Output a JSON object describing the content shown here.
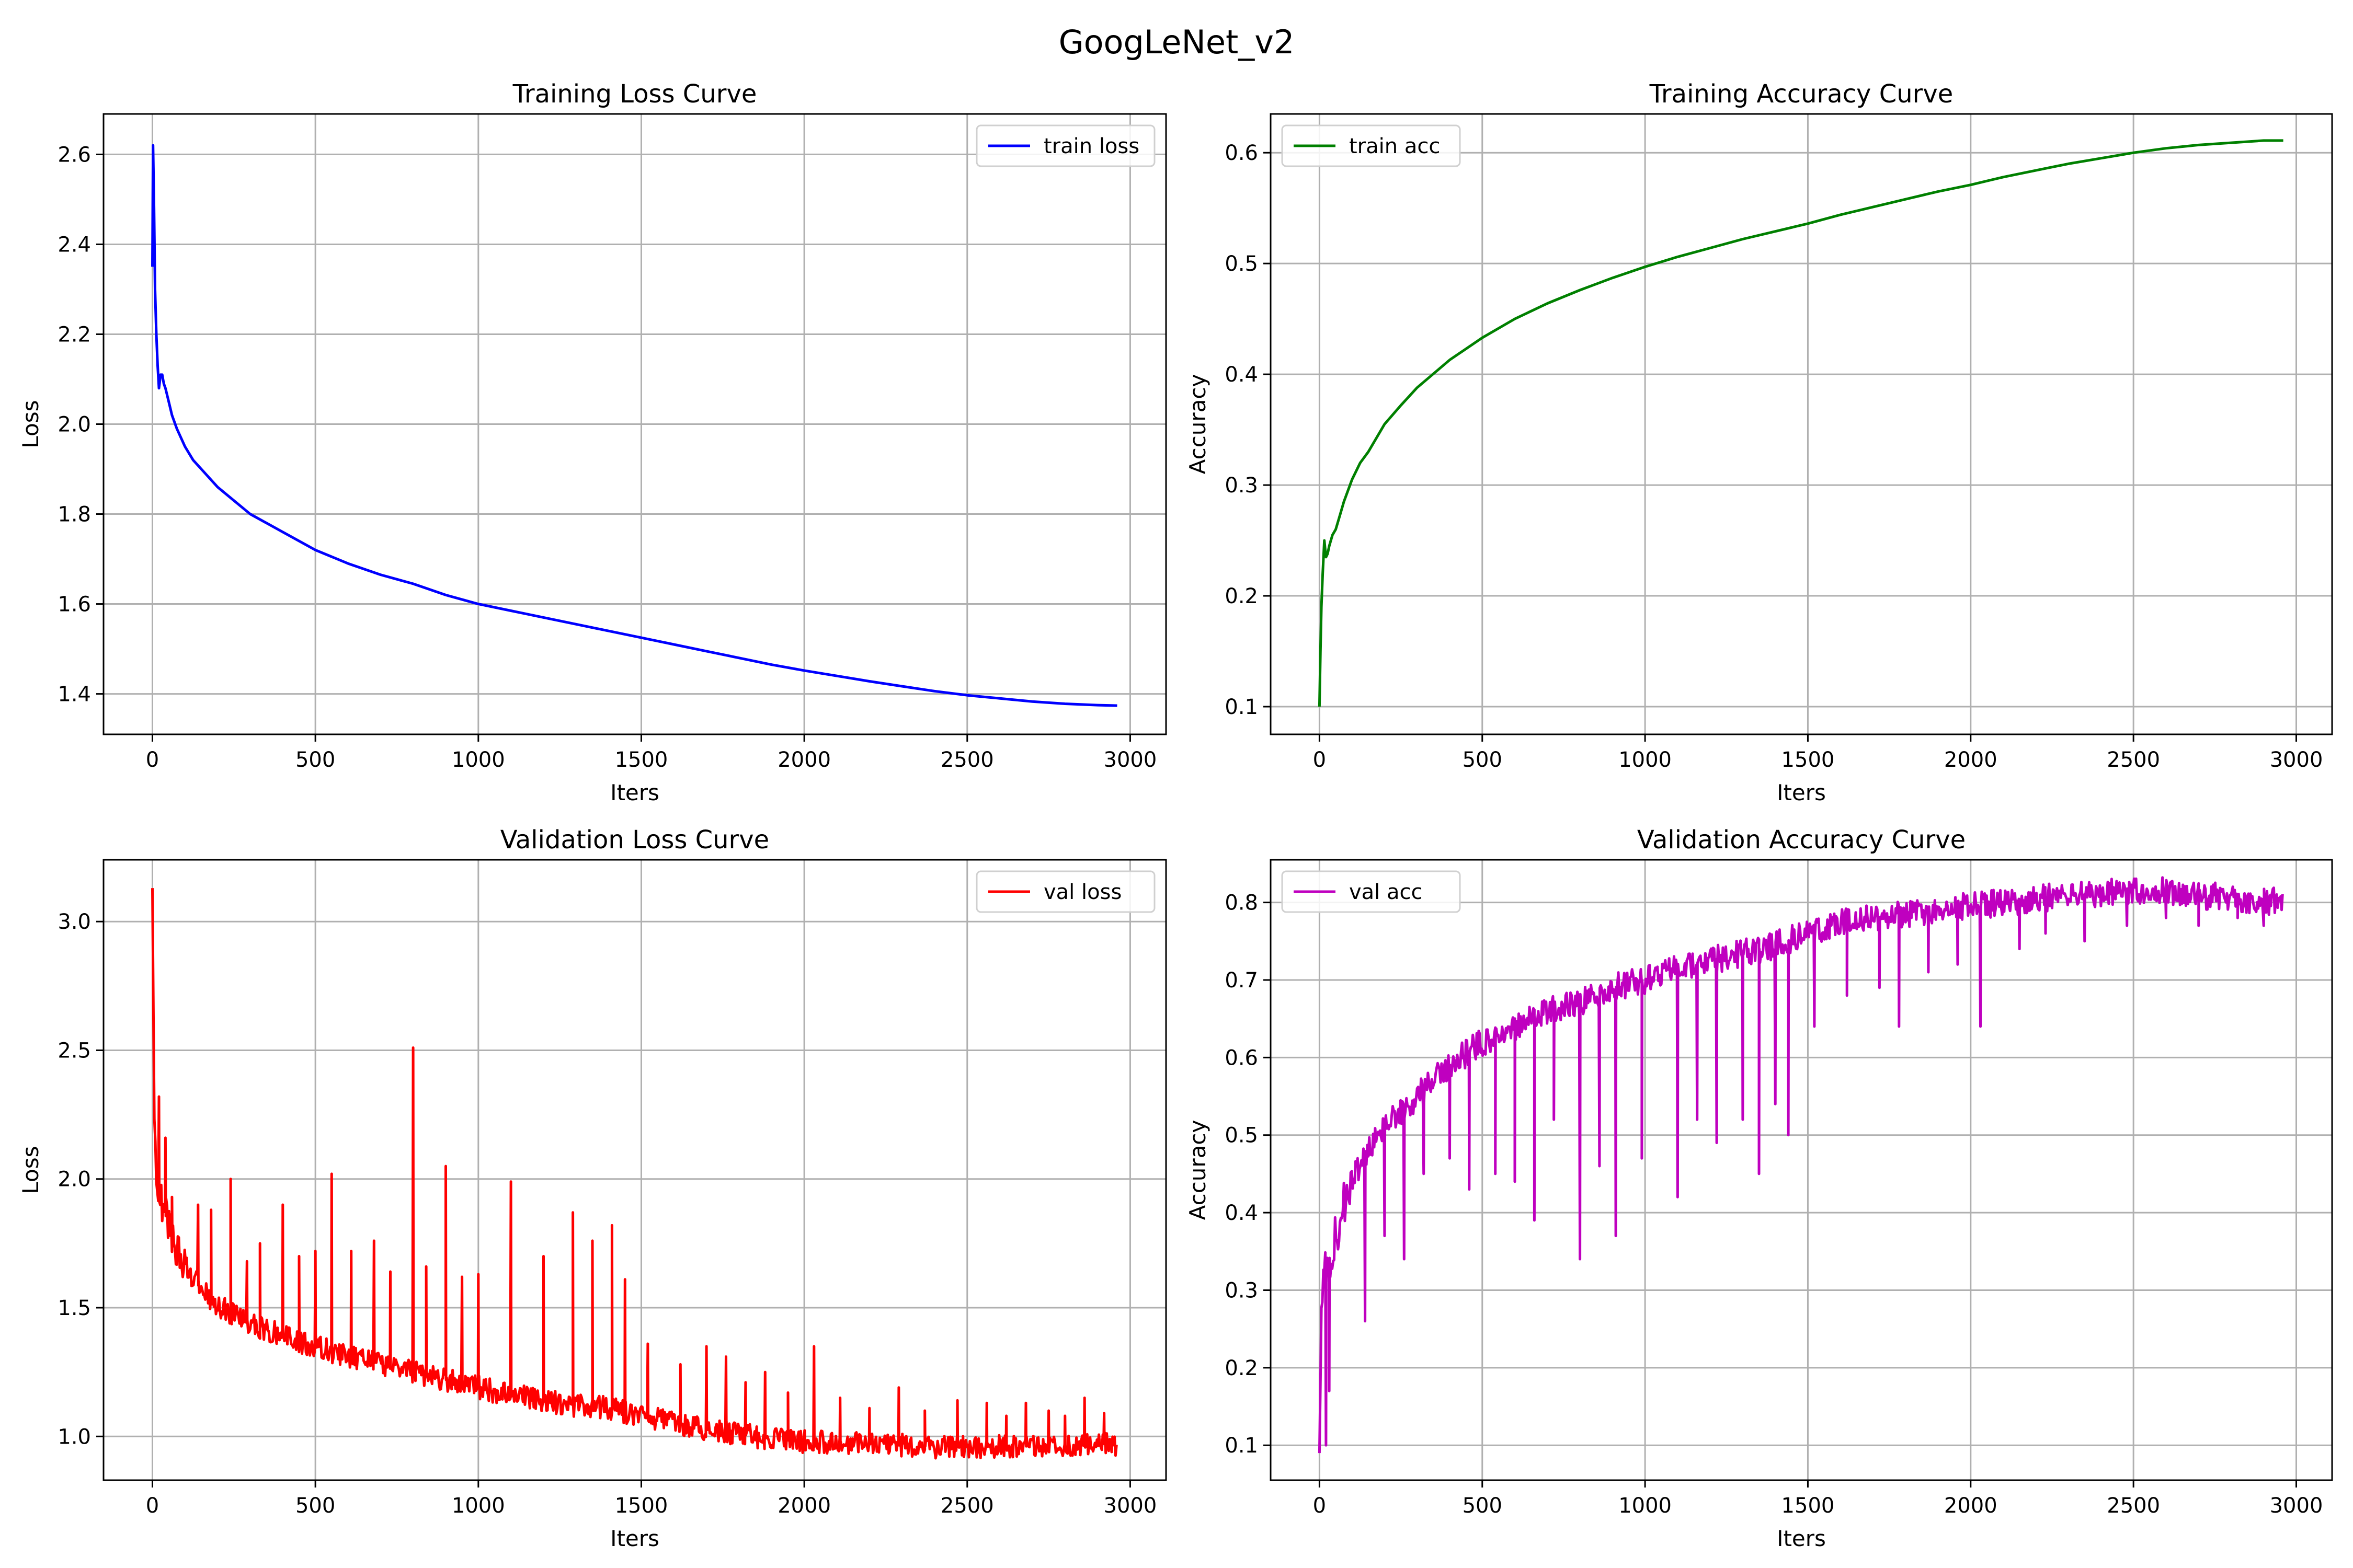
{
  "figure": {
    "suptitle": "GoogLeNet_v2"
  },
  "chart_data": [
    {
      "type": "line",
      "title": "Training Loss Curve",
      "xlabel": "Iters",
      "ylabel": "Loss",
      "xlim": [
        -150,
        3110
      ],
      "ylim": [
        1.31,
        2.69
      ],
      "xticks": [
        0,
        500,
        1000,
        1500,
        2000,
        2500,
        3000
      ],
      "yticks": [
        1.4,
        1.6,
        1.8,
        2.0,
        2.2,
        2.4,
        2.6
      ],
      "ytick_decimals": 1,
      "grid": true,
      "legend_position": "top-right",
      "series": [
        {
          "name": "train loss",
          "color": "#0000ff",
          "noisy": false,
          "x": [
            0,
            2,
            5,
            8,
            12,
            16,
            20,
            25,
            30,
            35,
            40,
            50,
            60,
            75,
            100,
            125,
            150,
            200,
            250,
            300,
            400,
            500,
            600,
            700,
            800,
            900,
            1000,
            1100,
            1200,
            1300,
            1400,
            1500,
            1600,
            1700,
            1800,
            1900,
            2000,
            2100,
            2200,
            2300,
            2400,
            2500,
            2600,
            2700,
            2800,
            2900,
            2960
          ],
          "y": [
            2.35,
            2.62,
            2.48,
            2.3,
            2.2,
            2.13,
            2.08,
            2.11,
            2.11,
            2.09,
            2.08,
            2.05,
            2.02,
            1.99,
            1.95,
            1.92,
            1.9,
            1.86,
            1.83,
            1.8,
            1.76,
            1.72,
            1.69,
            1.665,
            1.645,
            1.62,
            1.6,
            1.585,
            1.57,
            1.555,
            1.54,
            1.525,
            1.51,
            1.495,
            1.48,
            1.465,
            1.452,
            1.44,
            1.428,
            1.417,
            1.406,
            1.397,
            1.39,
            1.383,
            1.378,
            1.375,
            1.374
          ]
        }
      ]
    },
    {
      "type": "line",
      "title": "Training Accuracy Curve",
      "xlabel": "Iters",
      "ylabel": "Accuracy",
      "xlim": [
        -150,
        3110
      ],
      "ylim": [
        0.075,
        0.635
      ],
      "xticks": [
        0,
        500,
        1000,
        1500,
        2000,
        2500,
        3000
      ],
      "yticks": [
        0.1,
        0.2,
        0.3,
        0.4,
        0.5,
        0.6
      ],
      "ytick_decimals": 1,
      "grid": true,
      "legend_position": "top-left",
      "series": [
        {
          "name": "train acc",
          "color": "#008000",
          "noisy": false,
          "x": [
            0,
            3,
            6,
            10,
            15,
            20,
            25,
            30,
            35,
            40,
            50,
            60,
            75,
            100,
            125,
            150,
            200,
            250,
            300,
            400,
            500,
            600,
            700,
            800,
            900,
            1000,
            1100,
            1200,
            1300,
            1400,
            1500,
            1600,
            1700,
            1800,
            1900,
            2000,
            2100,
            2200,
            2300,
            2400,
            2500,
            2600,
            2700,
            2800,
            2900,
            2960
          ],
          "y": [
            0.1,
            0.15,
            0.19,
            0.22,
            0.25,
            0.235,
            0.238,
            0.245,
            0.25,
            0.255,
            0.26,
            0.27,
            0.285,
            0.305,
            0.32,
            0.33,
            0.355,
            0.372,
            0.388,
            0.413,
            0.433,
            0.45,
            0.464,
            0.476,
            0.487,
            0.497,
            0.506,
            0.514,
            0.522,
            0.529,
            0.536,
            0.544,
            0.551,
            0.558,
            0.565,
            0.571,
            0.578,
            0.584,
            0.59,
            0.595,
            0.6,
            0.604,
            0.607,
            0.609,
            0.611,
            0.611
          ]
        }
      ]
    },
    {
      "type": "line",
      "title": "Validation Loss Curve",
      "xlabel": "Iters",
      "ylabel": "Loss",
      "xlim": [
        -150,
        3110
      ],
      "ylim": [
        0.83,
        3.24
      ],
      "xticks": [
        0,
        500,
        1000,
        1500,
        2000,
        2500,
        3000
      ],
      "yticks": [
        1.0,
        1.5,
        2.0,
        2.5,
        3.0
      ],
      "ytick_decimals": 1,
      "grid": true,
      "legend_position": "top-right",
      "series": [
        {
          "name": "val loss",
          "color": "#ff0000",
          "noisy": true,
          "noise_amplitude": 0.045,
          "spike_direction": "up",
          "x": [
            0,
            5,
            10,
            20,
            30,
            50,
            75,
            100,
            150,
            200,
            300,
            400,
            500,
            600,
            700,
            800,
            900,
            1000,
            1100,
            1200,
            1300,
            1400,
            1500,
            1600,
            1700,
            1800,
            1900,
            2000,
            2100,
            2200,
            2300,
            2400,
            2500,
            2600,
            2700,
            2800,
            2900,
            2960
          ],
          "y": [
            3.13,
            2.3,
            2.05,
            1.95,
            1.9,
            1.82,
            1.72,
            1.66,
            1.57,
            1.51,
            1.44,
            1.39,
            1.35,
            1.31,
            1.28,
            1.25,
            1.22,
            1.19,
            1.16,
            1.14,
            1.12,
            1.11,
            1.08,
            1.05,
            1.03,
            1.01,
            0.99,
            0.98,
            0.975,
            0.97,
            0.965,
            0.96,
            0.96,
            0.96,
            0.962,
            0.965,
            0.97,
            0.97
          ],
          "spikes": [
            {
              "x": 20,
              "y": 2.32
            },
            {
              "x": 40,
              "y": 2.16
            },
            {
              "x": 60,
              "y": 1.93
            },
            {
              "x": 140,
              "y": 1.9
            },
            {
              "x": 180,
              "y": 1.88
            },
            {
              "x": 240,
              "y": 2.0
            },
            {
              "x": 290,
              "y": 1.68
            },
            {
              "x": 330,
              "y": 1.75
            },
            {
              "x": 400,
              "y": 1.9
            },
            {
              "x": 450,
              "y": 1.7
            },
            {
              "x": 500,
              "y": 1.72
            },
            {
              "x": 550,
              "y": 2.02
            },
            {
              "x": 610,
              "y": 1.72
            },
            {
              "x": 680,
              "y": 1.76
            },
            {
              "x": 730,
              "y": 1.64
            },
            {
              "x": 800,
              "y": 2.51
            },
            {
              "x": 840,
              "y": 1.66
            },
            {
              "x": 900,
              "y": 2.05
            },
            {
              "x": 950,
              "y": 1.62
            },
            {
              "x": 1000,
              "y": 1.63
            },
            {
              "x": 1100,
              "y": 1.99
            },
            {
              "x": 1200,
              "y": 1.7
            },
            {
              "x": 1290,
              "y": 1.87
            },
            {
              "x": 1350,
              "y": 1.76
            },
            {
              "x": 1410,
              "y": 1.82
            },
            {
              "x": 1450,
              "y": 1.61
            },
            {
              "x": 1520,
              "y": 1.36
            },
            {
              "x": 1620,
              "y": 1.28
            },
            {
              "x": 1700,
              "y": 1.35
            },
            {
              "x": 1760,
              "y": 1.31
            },
            {
              "x": 1820,
              "y": 1.21
            },
            {
              "x": 1880,
              "y": 1.25
            },
            {
              "x": 1950,
              "y": 1.17
            },
            {
              "x": 2030,
              "y": 1.35
            },
            {
              "x": 2110,
              "y": 1.15
            },
            {
              "x": 2200,
              "y": 1.11
            },
            {
              "x": 2290,
              "y": 1.19
            },
            {
              "x": 2370,
              "y": 1.1
            },
            {
              "x": 2470,
              "y": 1.14
            },
            {
              "x": 2560,
              "y": 1.13
            },
            {
              "x": 2620,
              "y": 1.08
            },
            {
              "x": 2680,
              "y": 1.13
            },
            {
              "x": 2750,
              "y": 1.1
            },
            {
              "x": 2800,
              "y": 1.08
            },
            {
              "x": 2860,
              "y": 1.15
            },
            {
              "x": 2920,
              "y": 1.09
            }
          ]
        }
      ]
    },
    {
      "type": "line",
      "title": "Validation Accuracy Curve",
      "xlabel": "Iters",
      "ylabel": "Accuracy",
      "xlim": [
        -150,
        3110
      ],
      "ylim": [
        0.055,
        0.855
      ],
      "xticks": [
        0,
        500,
        1000,
        1500,
        2000,
        2500,
        3000
      ],
      "yticks": [
        0.1,
        0.2,
        0.3,
        0.4,
        0.5,
        0.6,
        0.7,
        0.8
      ],
      "ytick_decimals": 1,
      "grid": true,
      "legend_position": "top-left",
      "series": [
        {
          "name": "val acc",
          "color": "#bf00bf",
          "noisy": true,
          "noise_amplitude": 0.018,
          "spike_direction": "down",
          "x": [
            0,
            5,
            10,
            20,
            30,
            50,
            75,
            100,
            150,
            200,
            300,
            400,
            500,
            600,
            700,
            800,
            900,
            1000,
            1100,
            1200,
            1300,
            1400,
            1500,
            1600,
            1700,
            1800,
            1900,
            2000,
            2100,
            2200,
            2300,
            2400,
            2500,
            2600,
            2700,
            2800,
            2900,
            2960
          ],
          "y": [
            0.09,
            0.25,
            0.3,
            0.33,
            0.34,
            0.37,
            0.41,
            0.44,
            0.48,
            0.51,
            0.55,
            0.59,
            0.62,
            0.64,
            0.66,
            0.67,
            0.69,
            0.7,
            0.715,
            0.725,
            0.735,
            0.745,
            0.76,
            0.775,
            0.78,
            0.785,
            0.79,
            0.795,
            0.8,
            0.805,
            0.81,
            0.812,
            0.815,
            0.815,
            0.81,
            0.805,
            0.8,
            0.805
          ],
          "spikes": [
            {
              "x": 20,
              "y": 0.1
            },
            {
              "x": 30,
              "y": 0.17
            },
            {
              "x": 140,
              "y": 0.26
            },
            {
              "x": 200,
              "y": 0.37
            },
            {
              "x": 260,
              "y": 0.34
            },
            {
              "x": 320,
              "y": 0.45
            },
            {
              "x": 400,
              "y": 0.47
            },
            {
              "x": 460,
              "y": 0.43
            },
            {
              "x": 540,
              "y": 0.45
            },
            {
              "x": 600,
              "y": 0.44
            },
            {
              "x": 660,
              "y": 0.39
            },
            {
              "x": 720,
              "y": 0.52
            },
            {
              "x": 800,
              "y": 0.34
            },
            {
              "x": 860,
              "y": 0.46
            },
            {
              "x": 910,
              "y": 0.37
            },
            {
              "x": 990,
              "y": 0.47
            },
            {
              "x": 1100,
              "y": 0.42
            },
            {
              "x": 1160,
              "y": 0.52
            },
            {
              "x": 1220,
              "y": 0.49
            },
            {
              "x": 1300,
              "y": 0.52
            },
            {
              "x": 1350,
              "y": 0.45
            },
            {
              "x": 1400,
              "y": 0.54
            },
            {
              "x": 1440,
              "y": 0.5
            },
            {
              "x": 1520,
              "y": 0.64
            },
            {
              "x": 1620,
              "y": 0.68
            },
            {
              "x": 1720,
              "y": 0.69
            },
            {
              "x": 1780,
              "y": 0.64
            },
            {
              "x": 1870,
              "y": 0.71
            },
            {
              "x": 1960,
              "y": 0.72
            },
            {
              "x": 2030,
              "y": 0.64
            },
            {
              "x": 2150,
              "y": 0.74
            },
            {
              "x": 2230,
              "y": 0.76
            },
            {
              "x": 2350,
              "y": 0.75
            },
            {
              "x": 2480,
              "y": 0.77
            },
            {
              "x": 2600,
              "y": 0.78
            },
            {
              "x": 2700,
              "y": 0.77
            },
            {
              "x": 2820,
              "y": 0.78
            },
            {
              "x": 2900,
              "y": 0.77
            }
          ]
        }
      ]
    }
  ]
}
